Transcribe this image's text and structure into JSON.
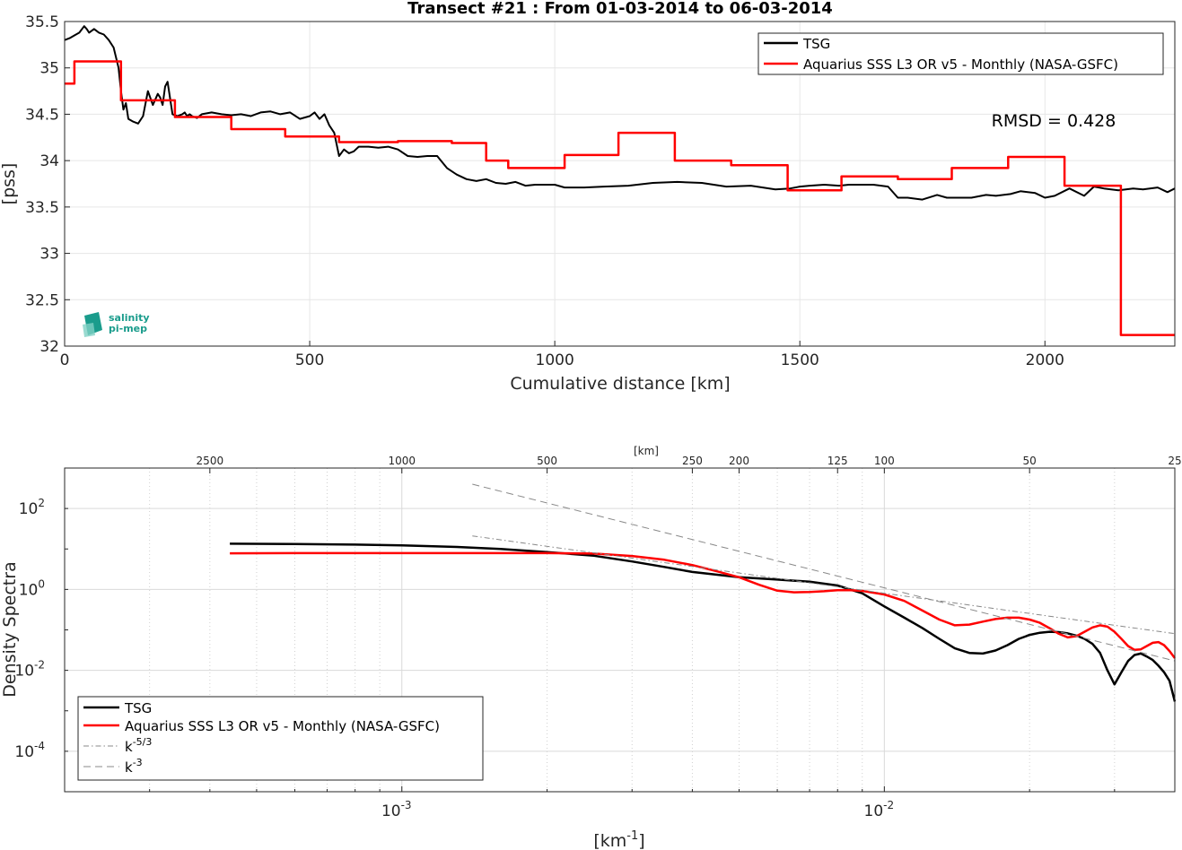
{
  "chart_data": [
    {
      "type": "line",
      "title": "Transect #21 : From 01-03-2014 to 06-03-2014",
      "xlabel": "Cumulative distance [km]",
      "ylabel": "[pss]",
      "xlim": [
        0,
        2265
      ],
      "ylim": [
        32,
        35.5
      ],
      "xticks": [
        0,
        500,
        1000,
        1500,
        2000
      ],
      "yticks": [
        32,
        32.5,
        33,
        33.5,
        34,
        34.5,
        35,
        35.5
      ],
      "xtick_labels": [
        "0",
        "500",
        "1000",
        "1500",
        "2000"
      ],
      "ytick_labels": [
        "32",
        "32.5",
        "33",
        "33.5",
        "34",
        "34.5",
        "35",
        "35.5"
      ],
      "grid": true,
      "legend_position": "top-right",
      "annotation": "RMSD = 0.428",
      "series": [
        {
          "name": "TSG",
          "color": "#000000",
          "x": [
            0,
            10,
            20,
            30,
            40,
            45,
            50,
            60,
            70,
            80,
            90,
            100,
            110,
            115,
            120,
            125,
            130,
            140,
            150,
            160,
            170,
            180,
            190,
            195,
            200,
            205,
            210,
            220,
            230,
            240,
            245,
            250,
            255,
            260,
            270,
            280,
            300,
            320,
            340,
            360,
            380,
            400,
            420,
            440,
            460,
            480,
            500,
            510,
            520,
            530,
            540,
            550,
            560,
            570,
            580,
            590,
            600,
            620,
            640,
            660,
            680,
            700,
            720,
            740,
            760,
            780,
            800,
            820,
            840,
            860,
            880,
            900,
            920,
            940,
            960,
            980,
            1000,
            1020,
            1040,
            1060,
            1100,
            1150,
            1200,
            1250,
            1300,
            1350,
            1400,
            1450,
            1480,
            1500,
            1520,
            1550,
            1580,
            1600,
            1650,
            1680,
            1700,
            1720,
            1750,
            1780,
            1800,
            1820,
            1850,
            1880,
            1900,
            1930,
            1950,
            1980,
            2000,
            2020,
            2050,
            2080,
            2100,
            2120,
            2150,
            2180,
            2200,
            2230,
            2250,
            2265
          ],
          "y": [
            35.3,
            35.32,
            35.35,
            35.38,
            35.45,
            35.42,
            35.38,
            35.42,
            35.38,
            35.36,
            35.3,
            35.22,
            35.0,
            34.75,
            34.55,
            34.62,
            34.45,
            34.42,
            34.4,
            34.48,
            34.75,
            34.6,
            34.72,
            34.68,
            34.6,
            34.8,
            34.85,
            34.5,
            34.48,
            34.5,
            34.52,
            34.48,
            34.5,
            34.48,
            34.46,
            34.5,
            34.52,
            34.5,
            34.49,
            34.5,
            34.48,
            34.52,
            34.53,
            34.5,
            34.52,
            34.45,
            34.48,
            34.52,
            34.45,
            34.5,
            34.38,
            34.3,
            34.05,
            34.12,
            34.08,
            34.1,
            34.15,
            34.15,
            34.14,
            34.15,
            34.12,
            34.05,
            34.04,
            34.05,
            34.05,
            33.92,
            33.85,
            33.8,
            33.78,
            33.8,
            33.76,
            33.75,
            33.77,
            33.73,
            33.74,
            33.74,
            33.74,
            33.71,
            33.71,
            33.71,
            33.72,
            33.73,
            33.76,
            33.77,
            33.76,
            33.72,
            33.73,
            33.69,
            33.7,
            33.72,
            33.73,
            33.74,
            33.73,
            33.74,
            33.74,
            33.72,
            33.6,
            33.6,
            33.58,
            33.63,
            33.6,
            33.6,
            33.6,
            33.63,
            33.62,
            33.64,
            33.67,
            33.65,
            33.6,
            33.62,
            33.7,
            33.62,
            33.72,
            33.7,
            33.68,
            33.7,
            33.69,
            33.71,
            33.66,
            33.7
          ]
        },
        {
          "name": "Aquarius SSS L3 OR v5 - Monthly (NASA-GSFC)",
          "color": "#ff0000",
          "step": true,
          "x": [
            0,
            20,
            20,
            115,
            115,
            225,
            225,
            340,
            340,
            450,
            450,
            560,
            560,
            680,
            680,
            790,
            790,
            860,
            860,
            905,
            905,
            1020,
            1020,
            1130,
            1130,
            1245,
            1245,
            1360,
            1360,
            1475,
            1475,
            1585,
            1585,
            1700,
            1700,
            1810,
            1810,
            1925,
            1925,
            2040,
            2040,
            2155,
            2155,
            2265
          ],
          "y": [
            34.83,
            34.83,
            35.07,
            35.07,
            34.65,
            34.65,
            34.47,
            34.47,
            34.34,
            34.34,
            34.26,
            34.26,
            34.2,
            34.2,
            34.21,
            34.21,
            34.19,
            34.19,
            34.0,
            34.0,
            33.92,
            33.92,
            34.06,
            34.06,
            34.3,
            34.3,
            34.0,
            34.0,
            33.95,
            33.95,
            33.68,
            33.68,
            33.83,
            33.83,
            33.8,
            33.8,
            33.92,
            33.92,
            34.04,
            34.04,
            33.73,
            33.73,
            32.12,
            32.12
          ]
        }
      ]
    },
    {
      "type": "line",
      "title": "",
      "xlabel": "[km-1]",
      "ylabel": "Density Spectra",
      "top_axis_label": "[km]",
      "x_scale": "log",
      "y_scale": "log",
      "xlim": [
        0.0002,
        0.04
      ],
      "ylim": [
        1e-05,
        1000
      ],
      "xtick_values": [
        0.001,
        0.01
      ],
      "xtick_mantissa": "10",
      "xtick_exponents": [
        "-3",
        "-2"
      ],
      "ytick_values": [
        0.0001,
        0.01,
        1,
        100
      ],
      "ytick_mantissa": "10",
      "ytick_exponents": [
        "-4",
        "-2",
        "0",
        "2"
      ],
      "top_ticks": [
        2500,
        1000,
        500,
        250,
        200,
        125,
        100,
        50,
        25
      ],
      "top_tick_labels": [
        "2500",
        "1000",
        "500",
        "250",
        "200",
        "125",
        "100",
        "50",
        "25"
      ],
      "grid": true,
      "legend_position": "bottom-left",
      "series": [
        {
          "name": "TSG",
          "color": "#000000",
          "x": [
            0.00044,
            0.0006,
            0.0008,
            0.001,
            0.0013,
            0.0016,
            0.002,
            0.0025,
            0.003,
            0.0035,
            0.004,
            0.005,
            0.006,
            0.007,
            0.008,
            0.009,
            0.01,
            0.011,
            0.012,
            0.013,
            0.014,
            0.015,
            0.016,
            0.017,
            0.018,
            0.019,
            0.02,
            0.021,
            0.022,
            0.023,
            0.024,
            0.025,
            0.026,
            0.027,
            0.028,
            0.029,
            0.03,
            0.031,
            0.032,
            0.033,
            0.034,
            0.035,
            0.036,
            0.037,
            0.038,
            0.039,
            0.04
          ],
          "y": [
            13.5,
            13.2,
            12.8,
            12.3,
            11.2,
            10.0,
            8.4,
            6.8,
            4.9,
            3.6,
            2.7,
            2.0,
            1.75,
            1.55,
            1.25,
            0.8,
            0.38,
            0.2,
            0.11,
            0.06,
            0.035,
            0.027,
            0.026,
            0.031,
            0.042,
            0.06,
            0.075,
            0.085,
            0.09,
            0.088,
            0.082,
            0.072,
            0.06,
            0.045,
            0.027,
            0.01,
            0.0045,
            0.009,
            0.017,
            0.024,
            0.026,
            0.022,
            0.018,
            0.013,
            0.009,
            0.0055,
            0.0017
          ]
        },
        {
          "name": "Aquarius SSS L3 OR v5 - Monthly (NASA-GSFC)",
          "color": "#ff0000",
          "x": [
            0.00044,
            0.0006,
            0.0008,
            0.001,
            0.0013,
            0.0016,
            0.002,
            0.0025,
            0.003,
            0.0035,
            0.004,
            0.0045,
            0.005,
            0.0055,
            0.006,
            0.0065,
            0.007,
            0.0075,
            0.008,
            0.0085,
            0.009,
            0.01,
            0.011,
            0.012,
            0.013,
            0.014,
            0.015,
            0.016,
            0.017,
            0.018,
            0.019,
            0.02,
            0.021,
            0.022,
            0.023,
            0.024,
            0.025,
            0.026,
            0.027,
            0.028,
            0.029,
            0.03,
            0.031,
            0.032,
            0.033,
            0.034,
            0.035,
            0.036,
            0.037,
            0.038,
            0.039,
            0.04
          ],
          "y": [
            7.8,
            7.9,
            7.9,
            7.9,
            7.9,
            7.9,
            7.9,
            7.7,
            6.7,
            5.4,
            4.0,
            2.8,
            2.0,
            1.3,
            0.93,
            0.85,
            0.86,
            0.9,
            0.96,
            0.96,
            0.92,
            0.75,
            0.52,
            0.3,
            0.18,
            0.13,
            0.135,
            0.16,
            0.185,
            0.2,
            0.2,
            0.18,
            0.15,
            0.11,
            0.08,
            0.065,
            0.07,
            0.09,
            0.115,
            0.13,
            0.12,
            0.09,
            0.06,
            0.04,
            0.032,
            0.033,
            0.04,
            0.048,
            0.05,
            0.042,
            0.03,
            0.02
          ]
        },
        {
          "name": "k-5/3",
          "color": "#888888",
          "dash": "dashdot",
          "x": [
            0.0014,
            0.04
          ],
          "y": [
            21.0,
            0.0807
          ]
        },
        {
          "name": "k-3",
          "color": "#888888",
          "dash": "dash",
          "x": [
            0.0014,
            0.04
          ],
          "y": [
            400.0,
            0.0171
          ]
        }
      ]
    }
  ],
  "legend_top": {
    "items": [
      "TSG",
      "Aquarius SSS L3 OR v5 - Monthly (NASA-GSFC)"
    ]
  },
  "legend_bottom": {
    "items": [
      "TSG",
      "Aquarius SSS L3 OR v5 - Monthly (NASA-GSFC)",
      "k",
      "k"
    ],
    "superscripts": [
      "",
      "",
      "-5/3",
      "-3"
    ]
  },
  "logo": {
    "line1": "salinity",
    "line2": "pi-mep",
    "color": "#1a9c8c"
  }
}
